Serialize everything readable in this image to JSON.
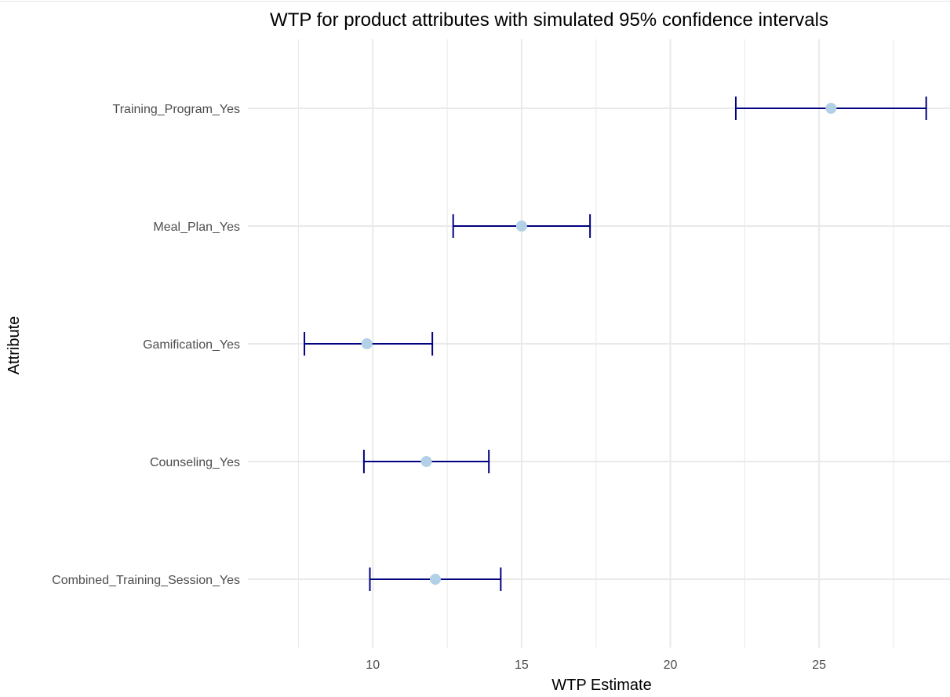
{
  "chart_data": {
    "type": "scatter",
    "title": "WTP for product attributes with simulated 95% confidence intervals",
    "xlabel": "WTP Estimate",
    "ylabel": "Attribute",
    "xlim": [
      5.8,
      29.4
    ],
    "x_ticks": [
      10,
      15,
      20,
      25
    ],
    "x_minor": [
      7.5,
      12.5,
      17.5,
      22.5,
      27.5
    ],
    "grid": true,
    "colors": {
      "interval": "#000080",
      "point": "#b3d1e6"
    },
    "categories": [
      "Training_Program_Yes",
      "Meal_Plan_Yes",
      "Gamification_Yes",
      "Counseling_Yes",
      "Combined_Training_Session_Yes"
    ],
    "points": [
      {
        "attribute": "Training_Program_Yes",
        "estimate": 25.4,
        "lower": 22.2,
        "upper": 28.6
      },
      {
        "attribute": "Meal_Plan_Yes",
        "estimate": 15.0,
        "lower": 12.7,
        "upper": 17.3
      },
      {
        "attribute": "Gamification_Yes",
        "estimate": 9.8,
        "lower": 7.7,
        "upper": 12.0
      },
      {
        "attribute": "Counseling_Yes",
        "estimate": 11.8,
        "lower": 9.7,
        "upper": 13.9
      },
      {
        "attribute": "Combined_Training_Session_Yes",
        "estimate": 12.1,
        "lower": 9.9,
        "upper": 14.3
      }
    ]
  }
}
